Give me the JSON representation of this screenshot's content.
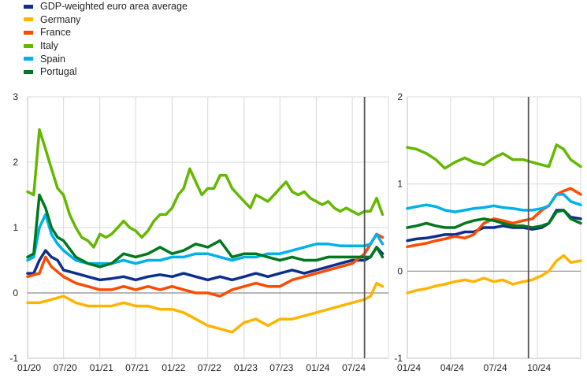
{
  "chart_data": [
    {
      "type": "line",
      "ylim": [
        -1,
        3
      ],
      "yticks": [
        "-1",
        "0",
        "1",
        "2",
        "3"
      ],
      "xticks": [
        "01/20",
        "07/20",
        "01/21",
        "07/21",
        "01/22",
        "07/22",
        "01/23",
        "07/23",
        "01/24",
        "07/24"
      ],
      "grid": true,
      "vertical_marker": "2024-09",
      "series": [
        {
          "name": "GDP-weighted euro area average",
          "color": "#0d2f8c",
          "x": [
            "2020-01",
            "2020-02",
            "2020-03",
            "2020-04",
            "2020-05",
            "2020-06",
            "2020-07",
            "2020-09",
            "2020-11",
            "2021-01",
            "2021-03",
            "2021-05",
            "2021-07",
            "2021-09",
            "2021-11",
            "2022-01",
            "2022-03",
            "2022-05",
            "2022-07",
            "2022-09",
            "2022-11",
            "2023-01",
            "2023-03",
            "2023-05",
            "2023-07",
            "2023-09",
            "2023-11",
            "2024-01",
            "2024-03",
            "2024-05",
            "2024-07",
            "2024-09",
            "2024-10",
            "2024-11",
            "2024-12"
          ],
          "y": [
            0.3,
            0.3,
            0.5,
            0.65,
            0.55,
            0.5,
            0.35,
            0.3,
            0.25,
            0.2,
            0.22,
            0.25,
            0.2,
            0.25,
            0.28,
            0.25,
            0.3,
            0.25,
            0.2,
            0.25,
            0.2,
            0.25,
            0.3,
            0.25,
            0.3,
            0.35,
            0.3,
            0.35,
            0.4,
            0.45,
            0.5,
            0.5,
            0.55,
            0.7,
            0.6
          ]
        },
        {
          "name": "Germany",
          "color": "#ffb400",
          "x": [
            "2020-01",
            "2020-03",
            "2020-05",
            "2020-07",
            "2020-09",
            "2020-11",
            "2021-01",
            "2021-03",
            "2021-05",
            "2021-07",
            "2021-09",
            "2021-11",
            "2022-01",
            "2022-03",
            "2022-05",
            "2022-07",
            "2022-09",
            "2022-11",
            "2023-01",
            "2023-03",
            "2023-05",
            "2023-07",
            "2023-09",
            "2023-11",
            "2024-01",
            "2024-03",
            "2024-05",
            "2024-07",
            "2024-09",
            "2024-10",
            "2024-11",
            "2024-12"
          ],
          "y": [
            -0.15,
            -0.15,
            -0.1,
            -0.05,
            -0.15,
            -0.2,
            -0.2,
            -0.2,
            -0.15,
            -0.2,
            -0.2,
            -0.25,
            -0.25,
            -0.3,
            -0.4,
            -0.5,
            -0.55,
            -0.6,
            -0.45,
            -0.4,
            -0.5,
            -0.4,
            -0.4,
            -0.35,
            -0.3,
            -0.25,
            -0.2,
            -0.15,
            -0.1,
            -0.05,
            0.15,
            0.1
          ]
        },
        {
          "name": "France",
          "color": "#ff4b00",
          "x": [
            "2020-01",
            "2020-03",
            "2020-04",
            "2020-05",
            "2020-07",
            "2020-09",
            "2020-11",
            "2021-01",
            "2021-03",
            "2021-05",
            "2021-07",
            "2021-09",
            "2021-11",
            "2022-01",
            "2022-03",
            "2022-05",
            "2022-07",
            "2022-09",
            "2022-11",
            "2023-01",
            "2023-03",
            "2023-05",
            "2023-07",
            "2023-09",
            "2023-11",
            "2024-01",
            "2024-03",
            "2024-05",
            "2024-07",
            "2024-09",
            "2024-10",
            "2024-11",
            "2024-12"
          ],
          "y": [
            0.25,
            0.3,
            0.55,
            0.4,
            0.25,
            0.15,
            0.1,
            0.05,
            0.05,
            0.1,
            0.05,
            0.1,
            0.05,
            0.1,
            0.05,
            0.0,
            0.0,
            -0.05,
            0.05,
            0.1,
            0.15,
            0.1,
            0.1,
            0.2,
            0.25,
            0.3,
            0.35,
            0.4,
            0.45,
            0.6,
            0.75,
            0.9,
            0.85
          ]
        },
        {
          "name": "Italy",
          "color": "#65b800",
          "x": [
            "2020-01",
            "2020-02",
            "2020-03",
            "2020-04",
            "2020-05",
            "2020-06",
            "2020-07",
            "2020-08",
            "2020-09",
            "2020-10",
            "2020-11",
            "2020-12",
            "2021-01",
            "2021-02",
            "2021-03",
            "2021-04",
            "2021-05",
            "2021-06",
            "2021-07",
            "2021-08",
            "2021-09",
            "2021-10",
            "2021-11",
            "2021-12",
            "2022-01",
            "2022-02",
            "2022-03",
            "2022-04",
            "2022-05",
            "2022-06",
            "2022-07",
            "2022-08",
            "2022-09",
            "2022-10",
            "2022-11",
            "2022-12",
            "2023-01",
            "2023-02",
            "2023-03",
            "2023-04",
            "2023-05",
            "2023-06",
            "2023-07",
            "2023-08",
            "2023-09",
            "2023-10",
            "2023-11",
            "2023-12",
            "2024-01",
            "2024-02",
            "2024-03",
            "2024-04",
            "2024-05",
            "2024-06",
            "2024-07",
            "2024-08",
            "2024-09",
            "2024-10",
            "2024-11",
            "2024-12"
          ],
          "y": [
            1.55,
            1.5,
            2.5,
            2.2,
            1.9,
            1.6,
            1.5,
            1.2,
            1.0,
            0.85,
            0.8,
            0.7,
            0.9,
            0.85,
            0.9,
            1.0,
            1.1,
            1.0,
            0.95,
            0.85,
            0.95,
            1.1,
            1.2,
            1.2,
            1.3,
            1.5,
            1.6,
            1.9,
            1.7,
            1.5,
            1.6,
            1.6,
            1.8,
            1.8,
            1.6,
            1.5,
            1.4,
            1.3,
            1.5,
            1.45,
            1.4,
            1.5,
            1.6,
            1.7,
            1.55,
            1.5,
            1.55,
            1.45,
            1.4,
            1.35,
            1.4,
            1.3,
            1.25,
            1.3,
            1.25,
            1.2,
            1.25,
            1.25,
            1.45,
            1.2
          ]
        },
        {
          "name": "Spain",
          "color": "#00b1ea",
          "x": [
            "2020-01",
            "2020-02",
            "2020-03",
            "2020-04",
            "2020-05",
            "2020-06",
            "2020-07",
            "2020-09",
            "2020-11",
            "2021-01",
            "2021-03",
            "2021-05",
            "2021-07",
            "2021-09",
            "2021-11",
            "2022-01",
            "2022-03",
            "2022-05",
            "2022-07",
            "2022-09",
            "2022-11",
            "2023-01",
            "2023-03",
            "2023-05",
            "2023-07",
            "2023-09",
            "2023-11",
            "2024-01",
            "2024-03",
            "2024-05",
            "2024-07",
            "2024-09",
            "2024-10",
            "2024-11",
            "2024-12"
          ],
          "y": [
            0.5,
            0.55,
            1.0,
            1.2,
            0.9,
            0.75,
            0.65,
            0.5,
            0.45,
            0.45,
            0.45,
            0.5,
            0.45,
            0.5,
            0.5,
            0.55,
            0.55,
            0.6,
            0.6,
            0.55,
            0.5,
            0.55,
            0.55,
            0.6,
            0.6,
            0.65,
            0.7,
            0.75,
            0.75,
            0.72,
            0.72,
            0.72,
            0.75,
            0.9,
            0.75
          ]
        },
        {
          "name": "Portugal",
          "color": "#00781e",
          "x": [
            "2020-01",
            "2020-02",
            "2020-03",
            "2020-04",
            "2020-05",
            "2020-06",
            "2020-07",
            "2020-09",
            "2020-11",
            "2021-01",
            "2021-03",
            "2021-05",
            "2021-07",
            "2021-09",
            "2021-11",
            "2022-01",
            "2022-03",
            "2022-05",
            "2022-07",
            "2022-09",
            "2022-11",
            "2023-01",
            "2023-03",
            "2023-05",
            "2023-07",
            "2023-09",
            "2023-11",
            "2024-01",
            "2024-03",
            "2024-05",
            "2024-07",
            "2024-09",
            "2024-10",
            "2024-11",
            "2024-12"
          ],
          "y": [
            0.55,
            0.6,
            1.5,
            1.3,
            1.0,
            0.85,
            0.8,
            0.55,
            0.45,
            0.4,
            0.45,
            0.6,
            0.55,
            0.6,
            0.7,
            0.6,
            0.65,
            0.75,
            0.7,
            0.8,
            0.55,
            0.6,
            0.6,
            0.55,
            0.5,
            0.55,
            0.5,
            0.5,
            0.55,
            0.55,
            0.55,
            0.55,
            0.55,
            0.7,
            0.55
          ]
        }
      ]
    },
    {
      "type": "line",
      "ylim": [
        -1,
        2
      ],
      "yticks": [
        "-1",
        "0",
        "1",
        "2"
      ],
      "xticks": [
        "01/24",
        "04/24",
        "07/24",
        "10/24"
      ],
      "grid": true,
      "vertical_marker": "2024-09-12",
      "series": [
        {
          "name": "GDP-weighted euro area average",
          "color": "#0d2f8c",
          "x": [
            "2024-01-01",
            "2024-01-20",
            "2024-02-10",
            "2024-03-01",
            "2024-03-20",
            "2024-04-10",
            "2024-05-01",
            "2024-05-20",
            "2024-06-10",
            "2024-07-01",
            "2024-07-20",
            "2024-08-10",
            "2024-09-01",
            "2024-09-20",
            "2024-10-10",
            "2024-10-25",
            "2024-11-10",
            "2024-11-25",
            "2024-12-10",
            "2024-12-31"
          ],
          "y": [
            0.35,
            0.37,
            0.38,
            0.4,
            0.42,
            0.42,
            0.45,
            0.45,
            0.5,
            0.5,
            0.52,
            0.5,
            0.5,
            0.48,
            0.5,
            0.55,
            0.7,
            0.7,
            0.62,
            0.6
          ]
        },
        {
          "name": "Germany",
          "color": "#ffb400",
          "x": [
            "2024-01-01",
            "2024-01-20",
            "2024-02-10",
            "2024-03-01",
            "2024-03-20",
            "2024-04-10",
            "2024-05-01",
            "2024-05-20",
            "2024-06-10",
            "2024-07-01",
            "2024-07-20",
            "2024-08-10",
            "2024-09-01",
            "2024-09-20",
            "2024-10-10",
            "2024-10-25",
            "2024-11-10",
            "2024-11-25",
            "2024-12-10",
            "2024-12-31"
          ],
          "y": [
            -0.25,
            -0.22,
            -0.2,
            -0.17,
            -0.15,
            -0.12,
            -0.1,
            -0.12,
            -0.08,
            -0.12,
            -0.1,
            -0.15,
            -0.12,
            -0.1,
            -0.05,
            0.0,
            0.12,
            0.18,
            0.1,
            0.12
          ]
        },
        {
          "name": "France",
          "color": "#ff4b00",
          "x": [
            "2024-01-01",
            "2024-01-20",
            "2024-02-10",
            "2024-03-01",
            "2024-03-20",
            "2024-04-10",
            "2024-05-01",
            "2024-05-20",
            "2024-06-10",
            "2024-07-01",
            "2024-07-20",
            "2024-08-10",
            "2024-09-01",
            "2024-09-20",
            "2024-10-10",
            "2024-10-25",
            "2024-11-10",
            "2024-11-25",
            "2024-12-10",
            "2024-12-31"
          ],
          "y": [
            0.28,
            0.3,
            0.32,
            0.35,
            0.37,
            0.4,
            0.38,
            0.42,
            0.55,
            0.6,
            0.58,
            0.55,
            0.58,
            0.6,
            0.7,
            0.75,
            0.88,
            0.92,
            0.95,
            0.88
          ]
        },
        {
          "name": "Italy",
          "color": "#65b800",
          "x": [
            "2024-01-01",
            "2024-01-20",
            "2024-02-10",
            "2024-03-01",
            "2024-03-20",
            "2024-04-10",
            "2024-05-01",
            "2024-05-20",
            "2024-06-10",
            "2024-07-01",
            "2024-07-20",
            "2024-08-10",
            "2024-09-01",
            "2024-09-20",
            "2024-10-10",
            "2024-10-25",
            "2024-11-10",
            "2024-11-25",
            "2024-12-10",
            "2024-12-31"
          ],
          "y": [
            1.42,
            1.4,
            1.35,
            1.28,
            1.18,
            1.25,
            1.3,
            1.25,
            1.22,
            1.3,
            1.35,
            1.28,
            1.28,
            1.25,
            1.22,
            1.2,
            1.45,
            1.4,
            1.28,
            1.2
          ]
        },
        {
          "name": "Spain",
          "color": "#00b1ea",
          "x": [
            "2024-01-01",
            "2024-01-20",
            "2024-02-10",
            "2024-03-01",
            "2024-03-20",
            "2024-04-10",
            "2024-05-01",
            "2024-05-20",
            "2024-06-10",
            "2024-07-01",
            "2024-07-20",
            "2024-08-10",
            "2024-09-01",
            "2024-09-20",
            "2024-10-10",
            "2024-10-25",
            "2024-11-10",
            "2024-11-25",
            "2024-12-10",
            "2024-12-31"
          ],
          "y": [
            0.72,
            0.74,
            0.76,
            0.74,
            0.7,
            0.68,
            0.7,
            0.72,
            0.73,
            0.75,
            0.73,
            0.72,
            0.7,
            0.7,
            0.72,
            0.75,
            0.88,
            0.88,
            0.8,
            0.76
          ]
        },
        {
          "name": "Portugal",
          "color": "#00781e",
          "x": [
            "2024-01-01",
            "2024-01-20",
            "2024-02-10",
            "2024-03-01",
            "2024-03-20",
            "2024-04-10",
            "2024-05-01",
            "2024-05-20",
            "2024-06-10",
            "2024-07-01",
            "2024-07-20",
            "2024-08-10",
            "2024-09-01",
            "2024-09-20",
            "2024-10-10",
            "2024-10-25",
            "2024-11-10",
            "2024-11-25",
            "2024-12-10",
            "2024-12-31"
          ],
          "y": [
            0.5,
            0.52,
            0.55,
            0.52,
            0.5,
            0.5,
            0.55,
            0.58,
            0.6,
            0.58,
            0.55,
            0.52,
            0.52,
            0.5,
            0.52,
            0.55,
            0.68,
            0.7,
            0.6,
            0.55
          ]
        }
      ]
    }
  ]
}
